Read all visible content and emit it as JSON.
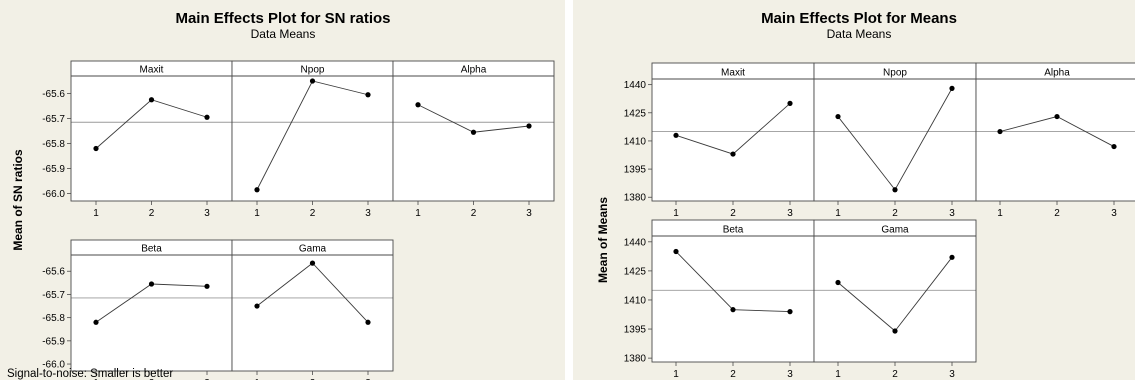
{
  "chart_data": [
    {
      "type": "line",
      "title": "Main Effects Plot for SN ratios",
      "subtitle": "Data Means",
      "ylabel": "Mean of SN ratios",
      "footnote": "Signal-to-noise: Smaller is better",
      "ylim": [
        -66.03,
        -65.53
      ],
      "yticks": [
        -65.6,
        -65.7,
        -65.8,
        -65.9,
        -66.0
      ],
      "ytick_labels": [
        "-65.6",
        "-65.7",
        "-65.8",
        "-65.9",
        "-66.0"
      ],
      "categories": [
        "1",
        "2",
        "3"
      ],
      "reference_line": -65.715,
      "background": "#f2f0e6",
      "factors": [
        {
          "name": "Maxit",
          "values": [
            -65.82,
            -65.625,
            -65.695
          ]
        },
        {
          "name": "Npop",
          "values": [
            -65.985,
            -65.55,
            -65.605
          ]
        },
        {
          "name": "Alpha",
          "values": [
            -65.645,
            -65.755,
            -65.73
          ]
        },
        {
          "name": "Beta",
          "values": [
            -65.82,
            -65.655,
            -65.665
          ]
        },
        {
          "name": "Gama",
          "values": [
            -65.75,
            -65.565,
            -65.82
          ]
        }
      ]
    },
    {
      "type": "line",
      "title": "Main Effects Plot for Means",
      "subtitle": "Data Means",
      "ylabel": "Mean of Means",
      "ylim": [
        1378,
        1443
      ],
      "yticks": [
        1440,
        1425,
        1410,
        1395,
        1380
      ],
      "ytick_labels": [
        "1440",
        "1425",
        "1410",
        "1395",
        "1380"
      ],
      "categories": [
        "1",
        "2",
        "3"
      ],
      "reference_line": 1415,
      "background": "#f2f0e6",
      "factors": [
        {
          "name": "Maxit",
          "values": [
            1413,
            1403,
            1430
          ]
        },
        {
          "name": "Npop",
          "values": [
            1423,
            1384,
            1438
          ]
        },
        {
          "name": "Alpha",
          "values": [
            1415,
            1423,
            1407
          ]
        },
        {
          "name": "Beta",
          "values": [
            1435,
            1405,
            1404
          ]
        },
        {
          "name": "Gama",
          "values": [
            1419,
            1394,
            1432
          ]
        }
      ]
    }
  ]
}
